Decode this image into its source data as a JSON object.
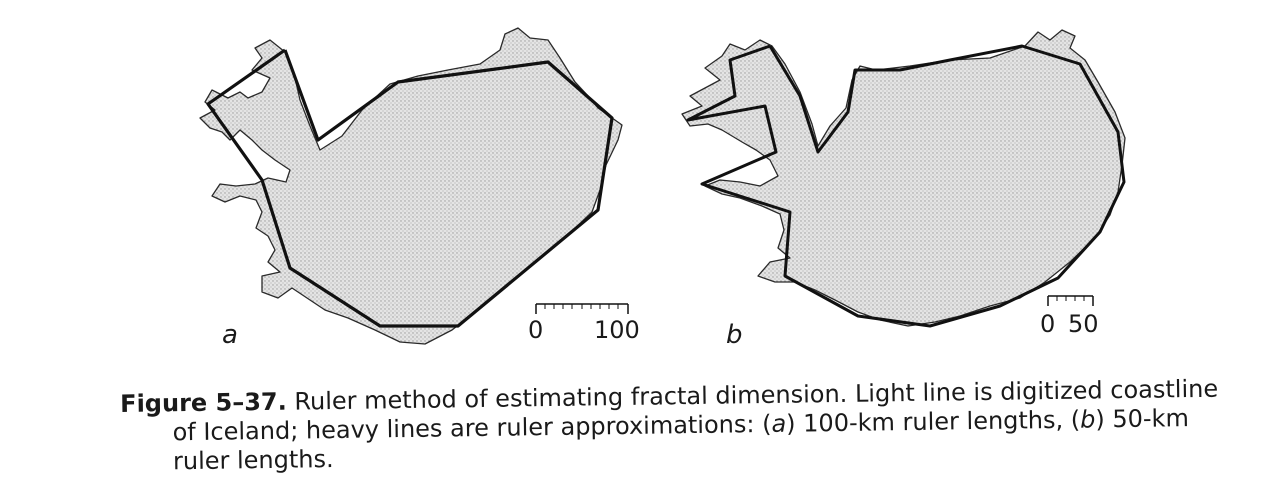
{
  "panels": [
    {
      "label": "a",
      "scale": {
        "start": "0",
        "end": "100"
      }
    },
    {
      "label": "b",
      "scale": {
        "start": "0",
        "end": "50"
      }
    }
  ],
  "caption": {
    "figure_number": "Figure 5–37.",
    "line1": "Ruler method of estimating fractal dimension. Light line is digitized coastline",
    "line2_prefix": "of Iceland; heavy lines are ruler approximations: (",
    "line2_a": "a",
    "line2_mid": ") 100-km ruler lengths, (",
    "line2_b": "b",
    "line2_suffix": ") 50-km",
    "line3": "ruler lengths."
  },
  "colors": {
    "land_fill": "#d8d8d8",
    "coastline": "#2a2a2a",
    "ruler_line": "#111111"
  }
}
